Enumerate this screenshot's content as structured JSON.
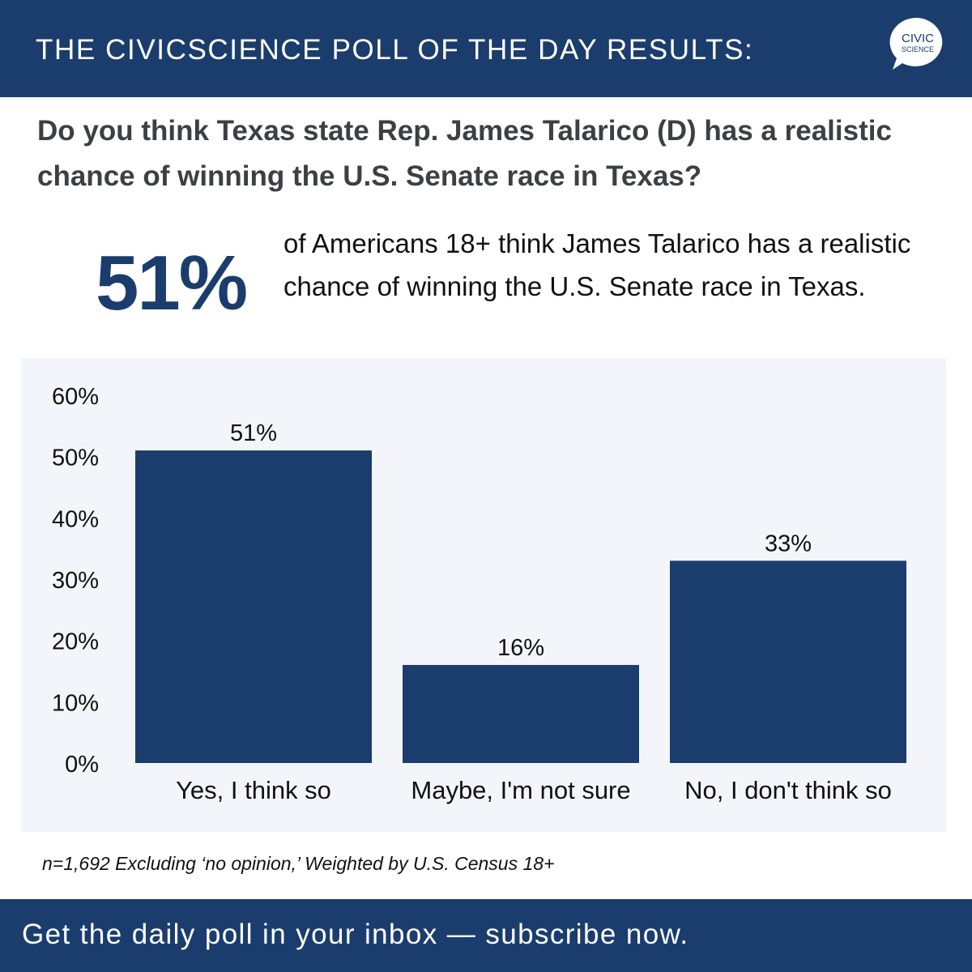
{
  "header": {
    "title": "THE CIVICSCIENCE POLL OF THE DAY RESULTS:",
    "logo": {
      "line1": "CIVIC",
      "line2": "SCIENCE",
      "icon": "speech-bubble-logo"
    }
  },
  "question": "Do you think Texas state Rep. James Talarico (D) has a realistic chance of winning the U.S. Senate race in Texas?",
  "highlight": {
    "stat": "51%",
    "text": "of Americans 18+ think James Talarico has a realistic chance of winning the U.S. Senate race in Texas."
  },
  "colors": {
    "brand": "#1b3d6d",
    "panel": "#f3f5fa"
  },
  "chart_data": {
    "type": "bar",
    "categories": [
      "Yes, I think so",
      "Maybe, I'm not sure",
      "No, I don't think so"
    ],
    "values": [
      51,
      16,
      33
    ],
    "value_labels": [
      "51%",
      "16%",
      "33%"
    ],
    "ylim": [
      0,
      60
    ],
    "yticks": [
      "0%",
      "10%",
      "20%",
      "30%",
      "40%",
      "50%",
      "60%"
    ],
    "title": "",
    "xlabel": "",
    "ylabel": "",
    "grid": false,
    "bar_color": "#1b3d6d"
  },
  "footnote": "n=1,692 Excluding ‘no opinion,’ Weighted by U.S. Census 18+",
  "footer": {
    "cta": "Get the daily poll in your inbox — subscribe now."
  }
}
